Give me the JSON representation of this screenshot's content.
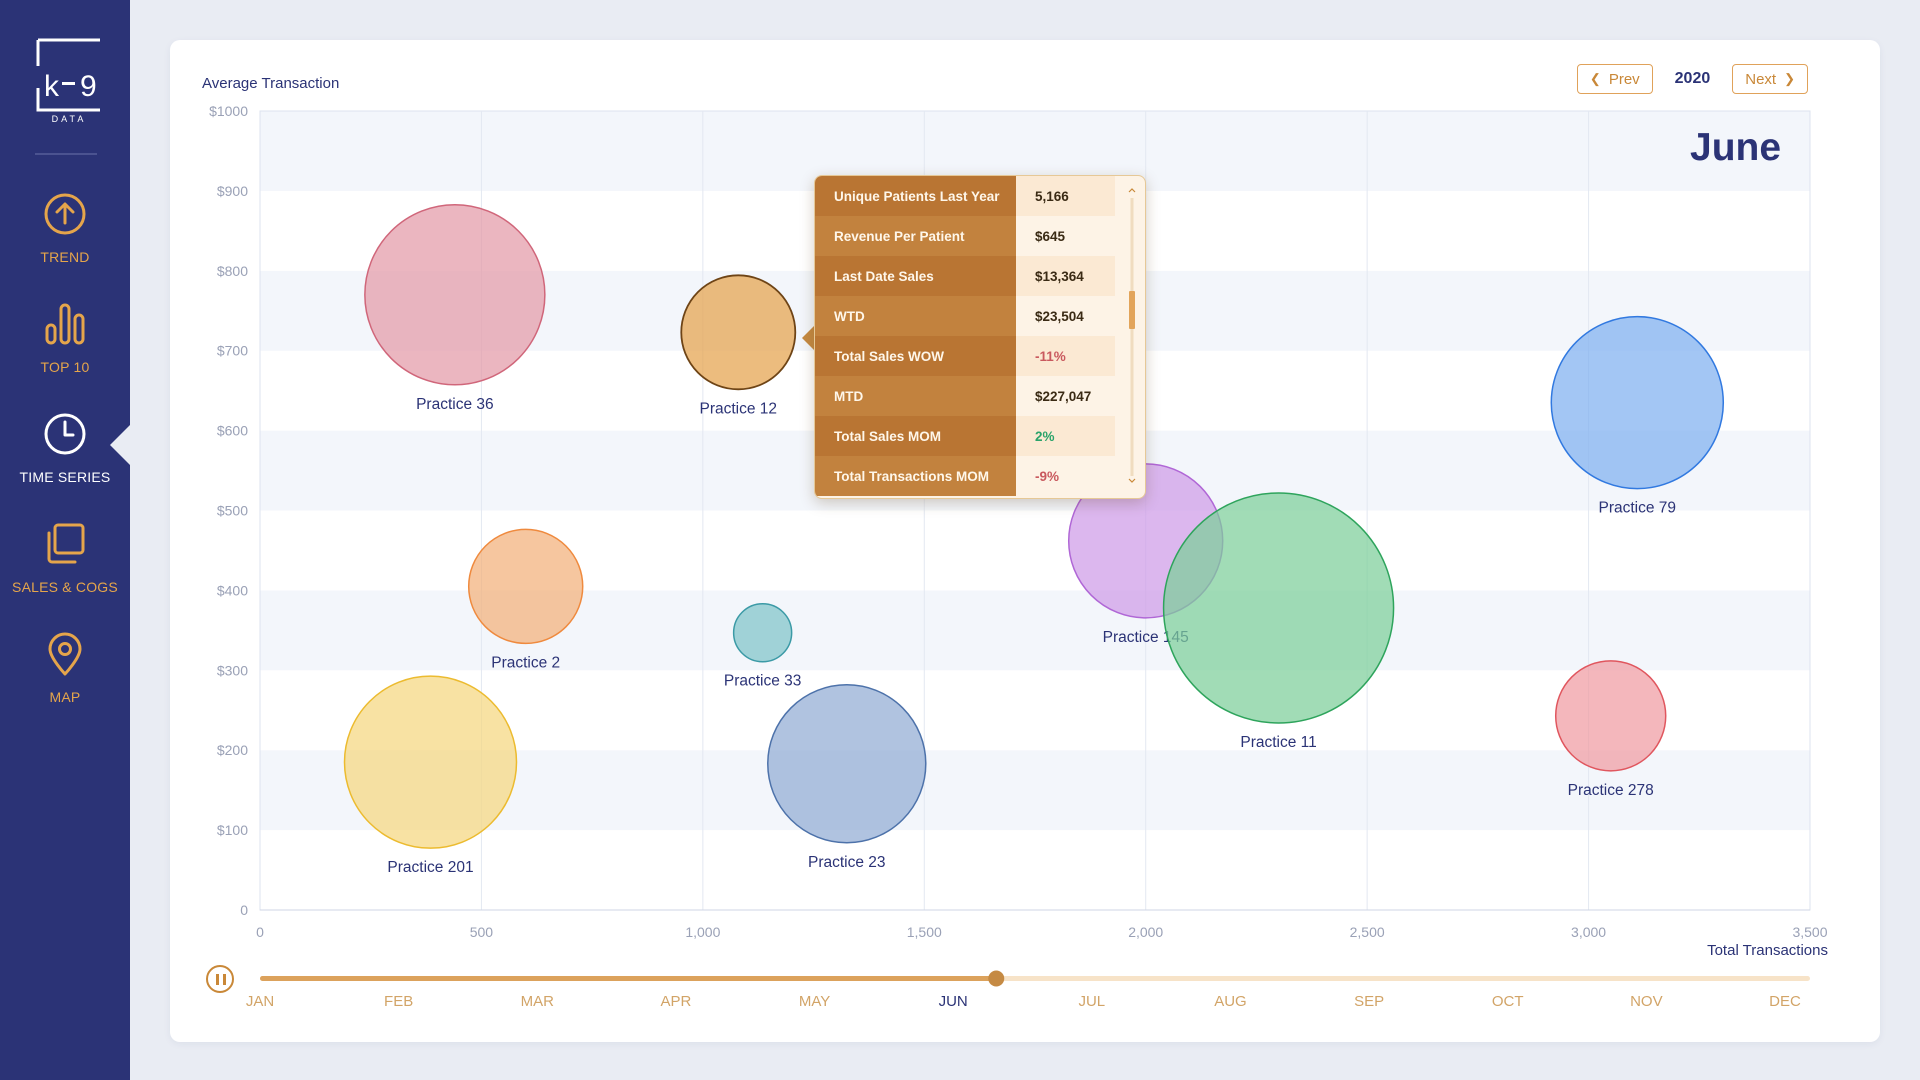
{
  "brand": {
    "logo_top": "k",
    "logo_mid": "9",
    "logo_sub": "DATA"
  },
  "sidebar": {
    "items": [
      {
        "label": "TREND",
        "icon": "arrow-up-circle-icon"
      },
      {
        "label": "TOP 10",
        "icon": "bar-chart-icon"
      },
      {
        "label": "TIME SERIES",
        "icon": "clock-icon",
        "active": true
      },
      {
        "label": "SALES & COGS",
        "icon": "copy-stack-icon"
      },
      {
        "label": "MAP",
        "icon": "map-pin-icon"
      }
    ],
    "colors": {
      "bg": "#2b3376",
      "accent": "#e5a54b",
      "active": "#ffffff"
    }
  },
  "header": {
    "prev_label": "Prev",
    "next_label": "Next",
    "year": "2020",
    "month_title": "June"
  },
  "tooltip": {
    "rows": [
      {
        "label": "Unique Patients Last Year",
        "value": "5,166",
        "tone": "normal"
      },
      {
        "label": "Revenue Per Patient",
        "value": "$645",
        "tone": "normal"
      },
      {
        "label": "Last Date Sales",
        "value": "$13,364",
        "tone": "normal"
      },
      {
        "label": "WTD",
        "value": "$23,504",
        "tone": "normal"
      },
      {
        "label": "Total Sales WOW",
        "value": "-11%",
        "tone": "negative"
      },
      {
        "label": "MTD",
        "value": "$227,047",
        "tone": "normal"
      },
      {
        "label": "Total Sales MOM",
        "value": "2%",
        "tone": "positive"
      },
      {
        "label": "Total Transactions MOM",
        "value": "-9%",
        "tone": "negative"
      }
    ]
  },
  "timeline": {
    "months": [
      "JAN",
      "FEB",
      "MAR",
      "APR",
      "MAY",
      "JUN",
      "JUL",
      "AUG",
      "SEP",
      "OCT",
      "NOV",
      "DEC"
    ],
    "active_month": "JUN",
    "progress": 0.475
  },
  "chart_data": {
    "type": "bubble",
    "title": "",
    "xlabel": "Total Transactions",
    "ylabel": "Average Transaction",
    "xlim": [
      0,
      3500
    ],
    "ylim": [
      0,
      1000
    ],
    "x_ticks": [
      "0",
      "500",
      "1,000",
      "1,500",
      "2,000",
      "2,500",
      "3,000",
      "3,500"
    ],
    "y_ticks": [
      "0",
      "$100",
      "$200",
      "$300",
      "$400",
      "$500",
      "$600",
      "$700",
      "$800",
      "$900",
      "$1000"
    ],
    "grid": true,
    "series": [
      {
        "name": "Practice 36",
        "x": 440,
        "y": 770,
        "r": 90,
        "color": "#e39aa8",
        "stroke": "#d0667a"
      },
      {
        "name": "Practice 12",
        "x": 1080,
        "y": 723,
        "r": 57,
        "color": "#e4a24c",
        "stroke": "#6e4416",
        "highlight": true
      },
      {
        "name": "Practice 2",
        "x": 600,
        "y": 405,
        "r": 57,
        "color": "#f2b07a",
        "stroke": "#ef8a3e"
      },
      {
        "name": "Practice 33",
        "x": 1135,
        "y": 347,
        "r": 29,
        "color": "#7fc3c9",
        "stroke": "#3b9aa6"
      },
      {
        "name": "Practice 201",
        "x": 385,
        "y": 185,
        "r": 86,
        "color": "#f5d77f",
        "stroke": "#ecbb2f"
      },
      {
        "name": "Practice 23",
        "x": 1325,
        "y": 183,
        "r": 79,
        "color": "#91acd4",
        "stroke": "#4d72aa"
      },
      {
        "name": "Practice 145",
        "x": 2000,
        "y": 462,
        "r": 77,
        "color": "#cf9be8",
        "stroke": "#b067d6"
      },
      {
        "name": "Practice 11",
        "x": 2300,
        "y": 378,
        "r": 115,
        "color": "#7dcf9a",
        "stroke": "#2ea45c"
      },
      {
        "name": "Practice 79",
        "x": 3110,
        "y": 635,
        "r": 86,
        "color": "#7fb0f0",
        "stroke": "#3179e0"
      },
      {
        "name": "Practice 278",
        "x": 3050,
        "y": 243,
        "r": 55,
        "color": "#f09ba2",
        "stroke": "#e0565e"
      }
    ]
  }
}
